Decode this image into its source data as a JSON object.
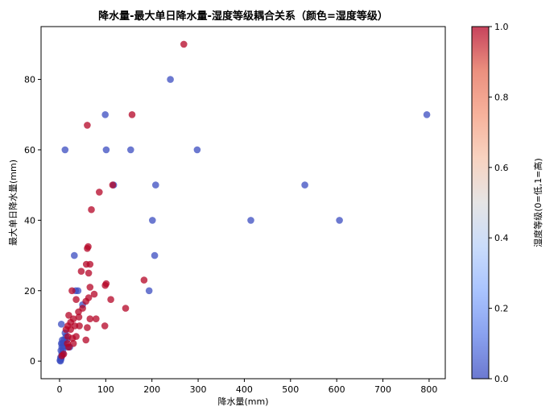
{
  "chart_data": {
    "type": "scatter",
    "title": "降水量-最大单日降水量-湿度等级耦合关系（颜色=湿度等级）",
    "xlabel": "降水量(mm)",
    "ylabel": "最大单日降水量(mm)",
    "xlim": [
      -40,
      835
    ],
    "ylim": [
      -5,
      95
    ],
    "xticks": [
      0,
      100,
      200,
      300,
      400,
      500,
      600,
      700,
      800
    ],
    "yticks": [
      0,
      20,
      40,
      60,
      80
    ],
    "grid": false,
    "colormap": "coolwarm",
    "point_alpha": 0.75,
    "colorbar": {
      "label": "湿度等级(0=低,1=高)",
      "range": [
        0,
        1
      ],
      "ticks": [
        0.0,
        0.2,
        0.4,
        0.6,
        0.8,
        1.0
      ],
      "tick_labels": [
        "0.0",
        "0.2",
        "0.4",
        "0.6",
        "0.8",
        "1.0"
      ],
      "colors": [
        "#3b4cc0",
        "#6282ea",
        "#8db0fe",
        "#b8d0f9",
        "#dddcdc",
        "#f5c4ac",
        "#f4987a",
        "#e46a53",
        "#b40426"
      ]
    },
    "series": [
      {
        "humidity": 0,
        "color": "#3b4cc0",
        "points": [
          [
            795,
            70
          ],
          [
            606,
            40
          ],
          [
            531,
            50
          ],
          [
            414,
            40
          ],
          [
            298,
            60
          ],
          [
            240,
            80
          ],
          [
            208,
            50
          ],
          [
            206,
            30
          ],
          [
            201,
            40
          ],
          [
            194,
            20
          ],
          [
            154,
            60
          ],
          [
            117,
            50
          ],
          [
            101,
            60
          ],
          [
            99,
            70
          ],
          [
            40,
            20
          ],
          [
            35,
            20
          ],
          [
            32,
            30
          ],
          [
            12,
            60
          ],
          [
            50,
            16
          ],
          [
            22,
            4
          ],
          [
            18,
            4
          ],
          [
            16,
            6
          ],
          [
            14,
            7
          ],
          [
            12,
            8
          ],
          [
            10,
            6
          ],
          [
            9,
            5
          ],
          [
            8,
            4
          ],
          [
            7,
            3
          ],
          [
            6,
            5
          ],
          [
            5,
            2
          ],
          [
            4,
            1
          ],
          [
            3,
            0.5
          ],
          [
            2,
            0
          ],
          [
            1,
            0.2
          ],
          [
            5,
            4
          ],
          [
            3,
            3
          ],
          [
            4,
            5
          ],
          [
            7,
            2
          ],
          [
            6,
            6
          ],
          [
            2,
            1
          ],
          [
            4,
            10.5
          ]
        ]
      },
      {
        "humidity": 1,
        "color": "#b40426",
        "points": [
          [
            269,
            90
          ],
          [
            157,
            70
          ],
          [
            60,
            67
          ],
          [
            86,
            48
          ],
          [
            115,
            50
          ],
          [
            69,
            43
          ],
          [
            62,
            32.5
          ],
          [
            60,
            32
          ],
          [
            66,
            27.5
          ],
          [
            58,
            27.5
          ],
          [
            63,
            25
          ],
          [
            47,
            25.5
          ],
          [
            183,
            23
          ],
          [
            101,
            22
          ],
          [
            99,
            21.5
          ],
          [
            66,
            21
          ],
          [
            27,
            20
          ],
          [
            111,
            17.5
          ],
          [
            63,
            18
          ],
          [
            57,
            17
          ],
          [
            36,
            17.5
          ],
          [
            75,
            19
          ],
          [
            143,
            15
          ],
          [
            50,
            15
          ],
          [
            41,
            14
          ],
          [
            20,
            13
          ],
          [
            30,
            12
          ],
          [
            42,
            12.5
          ],
          [
            66,
            12
          ],
          [
            79,
            12
          ],
          [
            43,
            10
          ],
          [
            33,
            10
          ],
          [
            60,
            9.5
          ],
          [
            98,
            10
          ],
          [
            18,
            10
          ],
          [
            24,
            9
          ],
          [
            36,
            7
          ],
          [
            28,
            6.5
          ],
          [
            18,
            7
          ],
          [
            57,
            6
          ],
          [
            30,
            5
          ],
          [
            17,
            5
          ],
          [
            20,
            4
          ],
          [
            9,
            2
          ],
          [
            5,
            1.5
          ],
          [
            24,
            11
          ],
          [
            14,
            9
          ]
        ]
      }
    ]
  }
}
